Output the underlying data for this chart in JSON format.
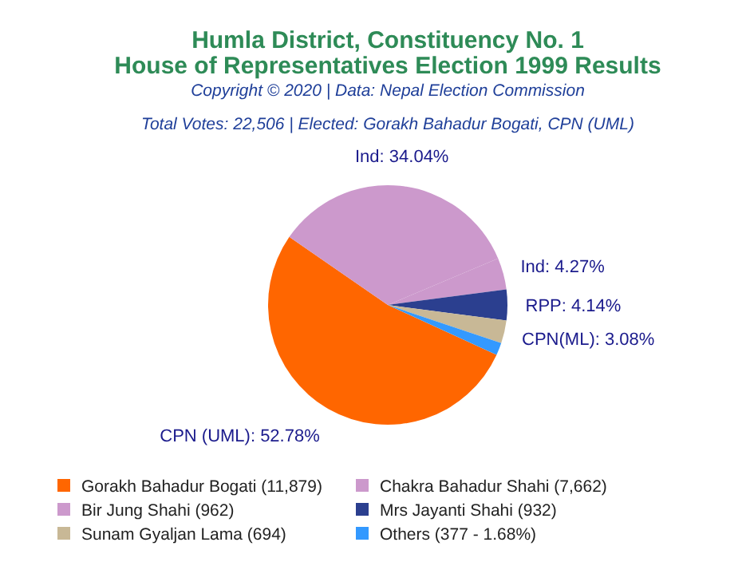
{
  "chart_data": {
    "type": "pie",
    "title": "Humla District, Constituency No. 1",
    "subtitle": "House of Representatives Election 1999 Results",
    "annotations": [
      "Copyright © 2020 | Data: Nepal Election Commission",
      "Total Votes: 22,506 | Elected: Gorakh Bahadur Bogati, CPN (UML)"
    ],
    "categories": [
      "Gorakh Bahadur Bogati (11,879)",
      "Chakra Bahadur Shahi (7,662)",
      "Bir Jung Shahi (962)",
      "Mrs Jayanti Shahi (932)",
      "Sunam Gyaljan Lama (694)",
      "Others (377 - 1.68%)"
    ],
    "values": [
      52.78,
      34.04,
      4.27,
      4.14,
      3.08,
      1.68
    ],
    "colors": [
      "#ff6600",
      "#cc99cc",
      "#cc99cc",
      "#2b3f8f",
      "#c8b896",
      "#3399ff"
    ],
    "value_labels": [
      "CPN (UML): 52.78%",
      "Ind: 34.04%",
      "Ind: 4.27%",
      "RPP: 4.14%",
      "CPN(ML): 3.08%",
      null
    ],
    "legend": "bottom"
  }
}
